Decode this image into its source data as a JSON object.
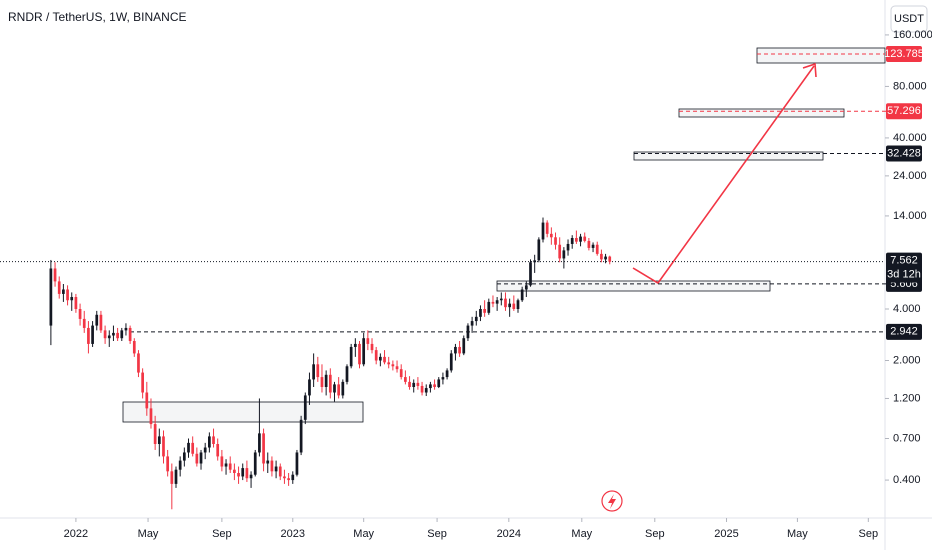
{
  "chart_data": {
    "type": "candlestick",
    "title": "RNDR / TetherUS, 1W, BINANCE",
    "currency": "USDT",
    "log_scale": true,
    "up_color": "#131722",
    "down_color": "#f23645",
    "xlim": [
      -12.2,
      200
    ],
    "xticks": [
      {
        "value": 6,
        "label": "2022"
      },
      {
        "value": 23.3,
        "label": "May"
      },
      {
        "value": 41,
        "label": "Sep"
      },
      {
        "value": 58,
        "label": "2023"
      },
      {
        "value": 75,
        "label": "May"
      },
      {
        "value": 92.6,
        "label": "Sep"
      },
      {
        "value": 109.8,
        "label": "2024"
      },
      {
        "value": 127.3,
        "label": "May"
      },
      {
        "value": 144.8,
        "label": "Sep"
      },
      {
        "value": 162,
        "label": "2025"
      },
      {
        "value": 179,
        "label": "May"
      },
      {
        "value": 196,
        "label": "Sep"
      }
    ],
    "ylim": [
      0.25,
      256
    ],
    "yticks": [
      {
        "value": 0.4,
        "label": "0.400"
      },
      {
        "value": 0.7,
        "label": "0.700"
      },
      {
        "value": 1.2,
        "label": "1.200"
      },
      {
        "value": 2,
        "label": "2.000"
      },
      {
        "value": 4,
        "label": "4.000"
      },
      {
        "value": 14,
        "label": "14.000"
      },
      {
        "value": 24,
        "label": "24.000"
      },
      {
        "value": 40,
        "label": "40.000"
      },
      {
        "value": 80,
        "label": "80.000"
      },
      {
        "value": 160,
        "label": "160.000"
      }
    ],
    "levels": [
      {
        "value": 123.785,
        "label": "123.785",
        "color": "#f23645"
      },
      {
        "value": 57.296,
        "label": "57.296",
        "color": "#f23645"
      },
      {
        "value": 32.428,
        "label": "32.428",
        "color": "#131722"
      },
      {
        "value": 5.606,
        "label": "5.606",
        "color": "#131722"
      },
      {
        "value": 2.942,
        "label": "2.942",
        "color": "#131722"
      }
    ],
    "last_price": {
      "value": 7.562,
      "label": "7.562",
      "countdown": "3d 12h"
    },
    "ohlc": [
      [
        3.2,
        7.74,
        2.46,
        6.9
      ],
      [
        6.9,
        7.5,
        5.4,
        5.8
      ],
      [
        5.8,
        6.2,
        4.6,
        4.9
      ],
      [
        4.9,
        5.6,
        4.4,
        5.2
      ],
      [
        5.2,
        5.5,
        4.2,
        4.5
      ],
      [
        4.5,
        5.0,
        3.9,
        4.7
      ],
      [
        4.7,
        4.9,
        3.8,
        4.0
      ],
      [
        4.0,
        4.3,
        3.2,
        3.5
      ],
      [
        3.5,
        3.9,
        2.9,
        3.1
      ],
      [
        3.1,
        3.4,
        2.2,
        2.5
      ],
      [
        2.5,
        3.4,
        2.4,
        3.2
      ],
      [
        3.2,
        3.9,
        3.0,
        3.7
      ],
      [
        3.7,
        3.9,
        2.9,
        3.0
      ],
      [
        3.0,
        3.2,
        2.5,
        2.7
      ],
      [
        2.7,
        3.0,
        2.4,
        2.8
      ],
      [
        2.8,
        3.2,
        2.6,
        2.9
      ],
      [
        2.9,
        3.1,
        2.6,
        2.7
      ],
      [
        2.7,
        3.1,
        2.6,
        3.0
      ],
      [
        3.0,
        3.3,
        2.8,
        3.1
      ],
      [
        3.1,
        3.2,
        2.5,
        2.6
      ],
      [
        2.6,
        2.7,
        2.1,
        2.2
      ],
      [
        2.2,
        2.3,
        1.6,
        1.7
      ],
      [
        1.7,
        1.8,
        1.2,
        1.3
      ],
      [
        1.3,
        1.5,
        0.95,
        1.05
      ],
      [
        1.05,
        1.2,
        0.8,
        0.85
      ],
      [
        0.85,
        0.95,
        0.6,
        0.65
      ],
      [
        0.65,
        0.8,
        0.55,
        0.72
      ],
      [
        0.72,
        0.78,
        0.5,
        0.55
      ],
      [
        0.55,
        0.6,
        0.42,
        0.45
      ],
      [
        0.45,
        0.5,
        0.27,
        0.38
      ],
      [
        0.38,
        0.48,
        0.36,
        0.46
      ],
      [
        0.46,
        0.55,
        0.42,
        0.52
      ],
      [
        0.52,
        0.62,
        0.48,
        0.58
      ],
      [
        0.58,
        0.7,
        0.54,
        0.66
      ],
      [
        0.66,
        0.72,
        0.55,
        0.57
      ],
      [
        0.57,
        0.62,
        0.48,
        0.5
      ],
      [
        0.5,
        0.6,
        0.46,
        0.58
      ],
      [
        0.58,
        0.66,
        0.53,
        0.62
      ],
      [
        0.62,
        0.76,
        0.58,
        0.72
      ],
      [
        0.72,
        0.8,
        0.62,
        0.65
      ],
      [
        0.65,
        0.7,
        0.52,
        0.55
      ],
      [
        0.55,
        0.6,
        0.45,
        0.48
      ],
      [
        0.48,
        0.53,
        0.43,
        0.5
      ],
      [
        0.5,
        0.55,
        0.44,
        0.46
      ],
      [
        0.46,
        0.5,
        0.4,
        0.44
      ],
      [
        0.44,
        0.48,
        0.38,
        0.42
      ],
      [
        0.42,
        0.5,
        0.4,
        0.47
      ],
      [
        0.47,
        0.52,
        0.39,
        0.41
      ],
      [
        0.41,
        0.45,
        0.36,
        0.43
      ],
      [
        0.43,
        0.6,
        0.42,
        0.58
      ],
      [
        0.58,
        1.2,
        0.55,
        0.75
      ],
      [
        0.75,
        0.8,
        0.45,
        0.5
      ],
      [
        0.5,
        0.58,
        0.44,
        0.52
      ],
      [
        0.52,
        0.55,
        0.42,
        0.45
      ],
      [
        0.45,
        0.52,
        0.41,
        0.48
      ],
      [
        0.48,
        0.5,
        0.4,
        0.42
      ],
      [
        0.42,
        0.46,
        0.38,
        0.41
      ],
      [
        0.41,
        0.44,
        0.37,
        0.4
      ],
      [
        0.4,
        0.45,
        0.38,
        0.43
      ],
      [
        0.43,
        0.6,
        0.42,
        0.58
      ],
      [
        0.58,
        0.95,
        0.56,
        0.9
      ],
      [
        0.9,
        1.3,
        0.85,
        1.25
      ],
      [
        1.25,
        1.7,
        1.1,
        1.55
      ],
      [
        1.55,
        2.2,
        1.4,
        1.9
      ],
      [
        1.9,
        2.1,
        1.5,
        1.6
      ],
      [
        1.6,
        1.9,
        1.3,
        1.4
      ],
      [
        1.4,
        1.75,
        1.25,
        1.65
      ],
      [
        1.65,
        1.8,
        1.2,
        1.3
      ],
      [
        1.3,
        1.5,
        1.15,
        1.45
      ],
      [
        1.45,
        1.6,
        1.2,
        1.25
      ],
      [
        1.25,
        1.55,
        1.2,
        1.5
      ],
      [
        1.5,
        1.9,
        1.45,
        1.85
      ],
      [
        1.85,
        2.5,
        1.8,
        2.4
      ],
      [
        2.4,
        2.7,
        2.1,
        2.5
      ],
      [
        2.5,
        2.6,
        1.8,
        1.9
      ],
      [
        1.9,
        2.9,
        1.85,
        2.7
      ],
      [
        2.7,
        3.0,
        2.3,
        2.5
      ],
      [
        2.5,
        2.7,
        2.2,
        2.3
      ],
      [
        2.3,
        2.4,
        1.9,
        2.0
      ],
      [
        2.0,
        2.2,
        1.85,
        2.1
      ],
      [
        2.1,
        2.3,
        1.9,
        1.95
      ],
      [
        1.95,
        2.1,
        1.8,
        1.9
      ],
      [
        1.9,
        2.0,
        1.75,
        1.85
      ],
      [
        1.85,
        2.0,
        1.7,
        1.78
      ],
      [
        1.78,
        1.9,
        1.55,
        1.6
      ],
      [
        1.6,
        1.75,
        1.45,
        1.5
      ],
      [
        1.5,
        1.62,
        1.35,
        1.4
      ],
      [
        1.4,
        1.55,
        1.3,
        1.48
      ],
      [
        1.48,
        1.6,
        1.35,
        1.42
      ],
      [
        1.42,
        1.5,
        1.25,
        1.3
      ],
      [
        1.3,
        1.45,
        1.24,
        1.38
      ],
      [
        1.38,
        1.5,
        1.3,
        1.45
      ],
      [
        1.45,
        1.55,
        1.35,
        1.4
      ],
      [
        1.4,
        1.6,
        1.38,
        1.55
      ],
      [
        1.55,
        1.7,
        1.45,
        1.6
      ],
      [
        1.6,
        1.8,
        1.55,
        1.75
      ],
      [
        1.75,
        2.3,
        1.7,
        2.2
      ],
      [
        2.2,
        2.5,
        2.0,
        2.4
      ],
      [
        2.4,
        2.6,
        2.1,
        2.2
      ],
      [
        2.2,
        2.8,
        2.15,
        2.7
      ],
      [
        2.7,
        3.3,
        2.6,
        3.2
      ],
      [
        3.2,
        3.6,
        2.9,
        3.4
      ],
      [
        3.4,
        3.9,
        3.2,
        3.6
      ],
      [
        3.6,
        4.2,
        3.4,
        4.0
      ],
      [
        4.0,
        4.5,
        3.6,
        3.8
      ],
      [
        3.8,
        4.6,
        3.7,
        4.4
      ],
      [
        4.4,
        4.8,
        4.1,
        4.3
      ],
      [
        4.3,
        4.7,
        3.9,
        4.5
      ],
      [
        4.5,
        5.0,
        4.2,
        4.6
      ],
      [
        4.6,
        5.0,
        3.9,
        4.1
      ],
      [
        4.1,
        4.6,
        3.6,
        4.3
      ],
      [
        4.3,
        4.8,
        3.9,
        4.0
      ],
      [
        4.0,
        4.6,
        3.8,
        4.5
      ],
      [
        4.5,
        5.4,
        4.4,
        5.2
      ],
      [
        5.2,
        5.8,
        4.7,
        5.5
      ],
      [
        5.5,
        7.8,
        5.4,
        7.5
      ],
      [
        7.5,
        8.3,
        6.5,
        7.7
      ],
      [
        7.7,
        10.5,
        7.5,
        10.2
      ],
      [
        10.2,
        13.7,
        9.8,
        12.8
      ],
      [
        12.8,
        13.2,
        10.5,
        11.0
      ],
      [
        11.0,
        12.0,
        9.5,
        10.5
      ],
      [
        10.5,
        11.2,
        8.9,
        9.5
      ],
      [
        9.5,
        10.5,
        7.5,
        7.9
      ],
      [
        7.9,
        9.2,
        6.9,
        8.8
      ],
      [
        8.8,
        10.2,
        8.2,
        9.6
      ],
      [
        9.6,
        10.8,
        9.0,
        10.4
      ],
      [
        10.4,
        11.5,
        9.6,
        9.9
      ],
      [
        9.9,
        11.0,
        9.3,
        10.6
      ],
      [
        10.6,
        11.2,
        9.8,
        10.0
      ],
      [
        10.0,
        10.4,
        8.8,
        9.1
      ],
      [
        9.1,
        9.8,
        8.6,
        9.5
      ],
      [
        9.5,
        9.9,
        8.2,
        8.4
      ],
      [
        8.4,
        8.9,
        7.5,
        7.8
      ],
      [
        7.8,
        8.4,
        7.4,
        8.1
      ],
      [
        8.1,
        8.2,
        7.3,
        7.562
      ]
    ]
  }
}
